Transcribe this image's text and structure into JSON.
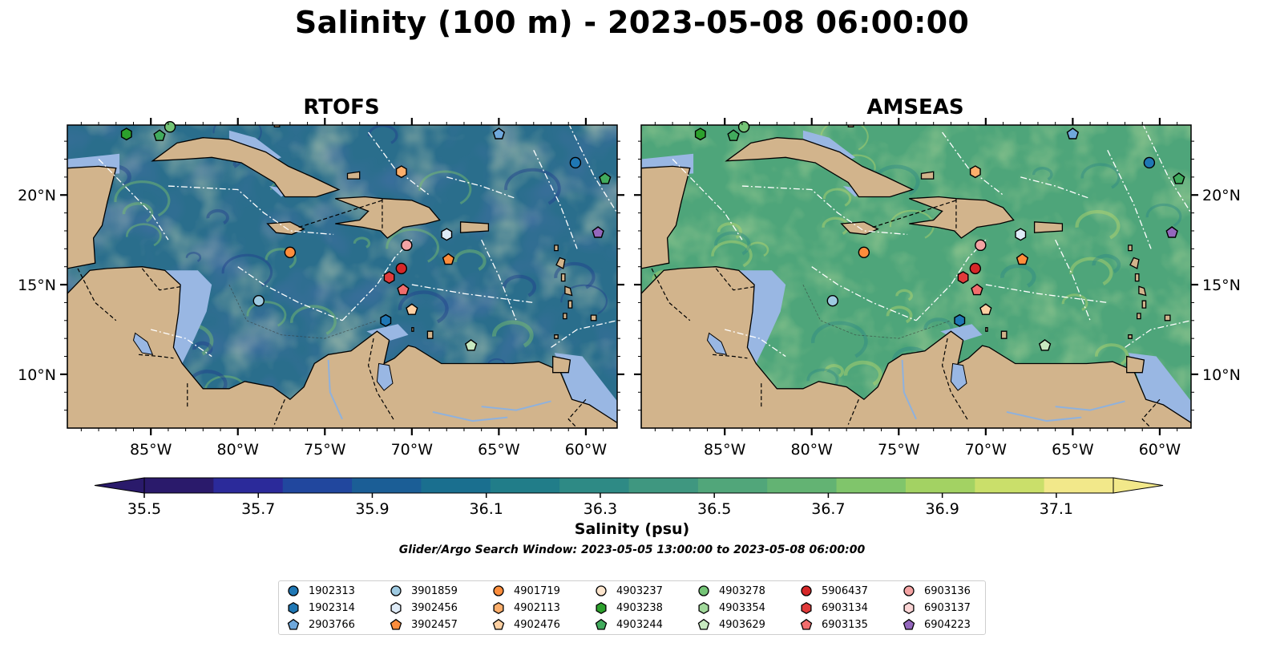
{
  "title": "Salinity (100 m) - 2023-05-08 06:00:00",
  "panels": [
    {
      "title": "RTOFS"
    },
    {
      "title": "AMSEAS"
    }
  ],
  "axes": {
    "x_ticks": [
      "85°W",
      "80°W",
      "75°W",
      "70°W",
      "65°W",
      "60°W"
    ],
    "y_ticks": [
      "20°N",
      "15°N",
      "10°N"
    ]
  },
  "colorbar": {
    "label": "Salinity (psu)",
    "ticks": [
      "35.5",
      "35.7",
      "35.9",
      "36.1",
      "36.3",
      "36.5",
      "36.7",
      "36.9",
      "37.1"
    ],
    "min": 35.5,
    "max": 37.2,
    "colors": [
      "#2a1a6b",
      "#2b2a9a",
      "#21479e",
      "#1b5e96",
      "#1a6f8f",
      "#217d89",
      "#2e8a85",
      "#3f9780",
      "#51a67a",
      "#63b373",
      "#80c56b",
      "#a3d263",
      "#cadf6a",
      "#f2e88a"
    ]
  },
  "search_window": "Glider/Argo Search Window: 2023-05-05 13:00:00 to 2023-05-08 06:00:00",
  "map_colors": {
    "land": "#d2b48c",
    "shelf": "#99b7e3",
    "rtofs_sea": "#2a6e8c",
    "amseas_sea": "#4ea57a",
    "pacific_rtofs": "#2a1a6b"
  },
  "legend": [
    {
      "id": "1902313",
      "marker": "circle",
      "color": "#1f77b4"
    },
    {
      "id": "1902314",
      "marker": "hexagon",
      "color": "#1f77b4"
    },
    {
      "id": "2903766",
      "marker": "pentagon",
      "color": "#6fa8dc"
    },
    {
      "id": "3901859",
      "marker": "circle",
      "color": "#9ecae1"
    },
    {
      "id": "3902456",
      "marker": "hexagon",
      "color": "#deebf7"
    },
    {
      "id": "3902457",
      "marker": "pentagon",
      "color": "#fd8d3c"
    },
    {
      "id": "4901719",
      "marker": "circle",
      "color": "#fd8d3c"
    },
    {
      "id": "4902113",
      "marker": "hexagon",
      "color": "#fdae6b"
    },
    {
      "id": "4902476",
      "marker": "pentagon",
      "color": "#fdd0a2"
    },
    {
      "id": "4903237",
      "marker": "circle",
      "color": "#fee6ce"
    },
    {
      "id": "4903238",
      "marker": "hexagon",
      "color": "#2ca02c"
    },
    {
      "id": "4903244",
      "marker": "pentagon",
      "color": "#41ab5d"
    },
    {
      "id": "4903278",
      "marker": "circle",
      "color": "#74c476"
    },
    {
      "id": "4903354",
      "marker": "hexagon",
      "color": "#a1d99b"
    },
    {
      "id": "4903629",
      "marker": "pentagon",
      "color": "#c7e9c0"
    },
    {
      "id": "5906437",
      "marker": "circle",
      "color": "#d62728"
    },
    {
      "id": "6903134",
      "marker": "hexagon",
      "color": "#e03b3b"
    },
    {
      "id": "6903135",
      "marker": "pentagon",
      "color": "#f26d6d"
    },
    {
      "id": "6903136",
      "marker": "circle",
      "color": "#f4a3a3"
    },
    {
      "id": "6903137",
      "marker": "hexagon",
      "color": "#fbd5d5"
    },
    {
      "id": "6904223",
      "marker": "pentagon",
      "color": "#9467bd"
    }
  ],
  "floats": [
    {
      "id": "4903238",
      "lon": -86.4,
      "lat": 23.4
    },
    {
      "id": "4903244",
      "lon": -84.5,
      "lat": 23.3
    },
    {
      "id": "4903278",
      "lon": -83.9,
      "lat": 23.8
    },
    {
      "id": "2903766",
      "lon": -65.0,
      "lat": 23.4
    },
    {
      "id": "4902113",
      "lon": -70.6,
      "lat": 21.3
    },
    {
      "id": "1902313",
      "lon": -60.6,
      "lat": 21.8
    },
    {
      "id": "4903244",
      "lon": -58.9,
      "lat": 20.9
    },
    {
      "id": "6904223",
      "lon": -59.3,
      "lat": 17.9
    },
    {
      "id": "3902456",
      "lon": -68.0,
      "lat": 17.8
    },
    {
      "id": "6903136",
      "lon": -70.3,
      "lat": 17.2
    },
    {
      "id": "4901719",
      "lon": -77.0,
      "lat": 16.8
    },
    {
      "id": "3902457",
      "lon": -67.9,
      "lat": 16.4
    },
    {
      "id": "5906437",
      "lon": -70.6,
      "lat": 15.9
    },
    {
      "id": "6903134",
      "lon": -71.3,
      "lat": 15.4
    },
    {
      "id": "6903135",
      "lon": -70.5,
      "lat": 14.7
    },
    {
      "id": "3901859",
      "lon": -78.8,
      "lat": 14.1
    },
    {
      "id": "4902476",
      "lon": -70.0,
      "lat": 13.6
    },
    {
      "id": "1902314",
      "lon": -71.5,
      "lat": 13.0
    },
    {
      "id": "4903629",
      "lon": -66.6,
      "lat": 11.6
    }
  ]
}
